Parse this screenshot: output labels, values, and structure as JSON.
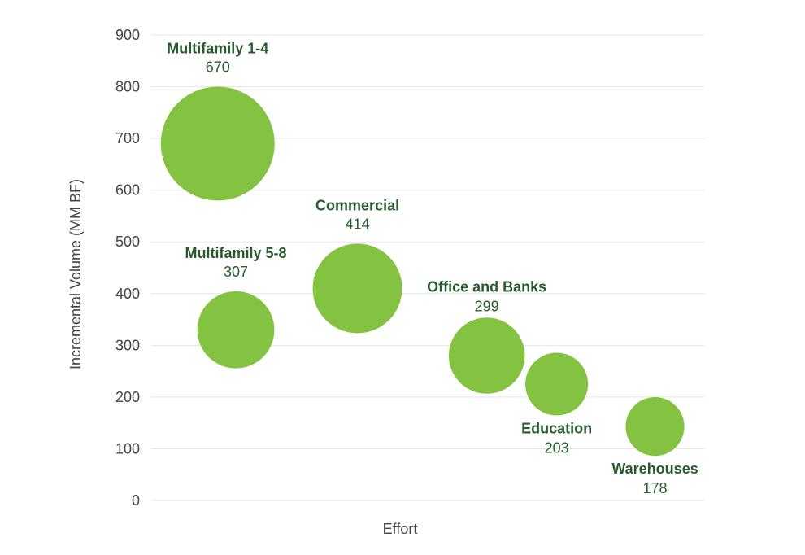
{
  "chart_data": {
    "type": "scatter",
    "xlabel": "Effort",
    "ylabel": "Incremental Volume (MM BF)",
    "ylim": [
      0,
      900
    ],
    "yticks": [
      "0",
      "100",
      "200",
      "300",
      "400",
      "500",
      "600",
      "700",
      "800",
      "900"
    ],
    "grid": true,
    "colors": {
      "bubble": "#84c341",
      "label": "#275b2c",
      "grid": "#e6e6e6",
      "tick": "#444444"
    },
    "points": [
      {
        "name": "Multifamily 1-4",
        "size_label": "670",
        "size": 670,
        "y": 690,
        "effort": 1.3,
        "label_pos": "above"
      },
      {
        "name": "Multifamily 5-8",
        "size_label": "307",
        "size": 307,
        "y": 330,
        "effort": 1.65,
        "label_pos": "above"
      },
      {
        "name": "Commercial",
        "size_label": "414",
        "size": 414,
        "y": 410,
        "effort": 4.0,
        "label_pos": "above"
      },
      {
        "name": "Office and Banks",
        "size_label": "299",
        "size": 299,
        "y": 280,
        "effort": 6.5,
        "label_pos": "above-right"
      },
      {
        "name": "Education",
        "size_label": "203",
        "size": 203,
        "y": 225,
        "effort": 7.85,
        "label_pos": "below"
      },
      {
        "name": "Warehouses",
        "size_label": "178",
        "size": 178,
        "y": 143,
        "effort": 9.75,
        "label_pos": "below"
      }
    ]
  }
}
